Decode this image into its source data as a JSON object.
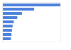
{
  "chart_data": {
    "type": "bar",
    "orientation": "horizontal",
    "categories": [
      null,
      null,
      null,
      null,
      null,
      null,
      null,
      null,
      null
    ],
    "values": [
      100,
      55,
      34,
      26,
      20,
      18,
      17,
      16,
      15
    ],
    "color": "#4a7fdb",
    "xlim": [
      0,
      100
    ],
    "tick_labels": false,
    "grid": false
  }
}
